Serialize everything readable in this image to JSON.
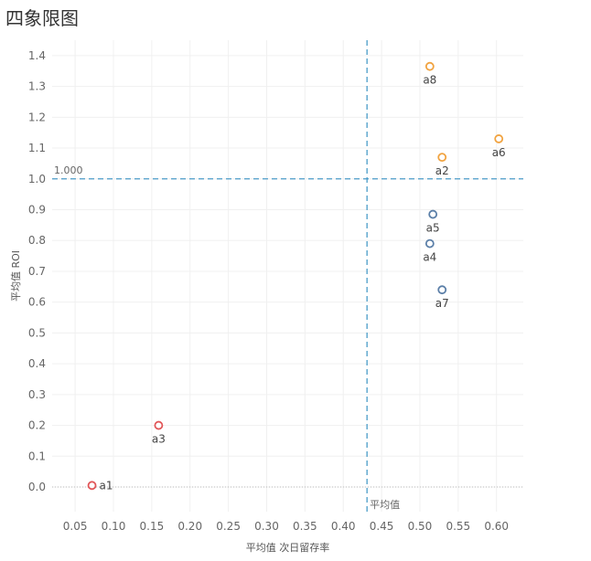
{
  "title": "四象限图",
  "chart_data": {
    "type": "scatter",
    "xlabel": "平均值 次日留存率",
    "ylabel": "平均值 ROI",
    "xlim": [
      0.02,
      0.635
    ],
    "ylim": [
      -0.08,
      1.45
    ],
    "x_ticks": [
      "0.05",
      "0.10",
      "0.15",
      "0.20",
      "0.25",
      "0.30",
      "0.35",
      "0.40",
      "0.45",
      "0.50",
      "0.55",
      "0.60"
    ],
    "y_ticks": [
      "0.0",
      "0.1",
      "0.2",
      "0.3",
      "0.4",
      "0.5",
      "0.6",
      "0.7",
      "0.8",
      "0.9",
      "1.0",
      "1.1",
      "1.2",
      "1.3",
      "1.4"
    ],
    "grid": true,
    "ref_lines": {
      "y": 1.0,
      "y_label": "1.000",
      "x": 0.431,
      "x_label": "平均值"
    },
    "points": [
      {
        "label": "a1",
        "x": 0.072,
        "y": 0.005,
        "color": "#e15759"
      },
      {
        "label": "a2",
        "x": 0.529,
        "y": 1.07,
        "color": "#f1a340"
      },
      {
        "label": "a3",
        "x": 0.159,
        "y": 0.2,
        "color": "#e15759"
      },
      {
        "label": "a4",
        "x": 0.513,
        "y": 0.79,
        "color": "#5b7fa8"
      },
      {
        "label": "a5",
        "x": 0.517,
        "y": 0.885,
        "color": "#5b7fa8"
      },
      {
        "label": "a6",
        "x": 0.603,
        "y": 1.13,
        "color": "#f1a340"
      },
      {
        "label": "a7",
        "x": 0.529,
        "y": 0.64,
        "color": "#5b7fa8"
      },
      {
        "label": "a8",
        "x": 0.513,
        "y": 1.365,
        "color": "#f1a340"
      }
    ]
  }
}
